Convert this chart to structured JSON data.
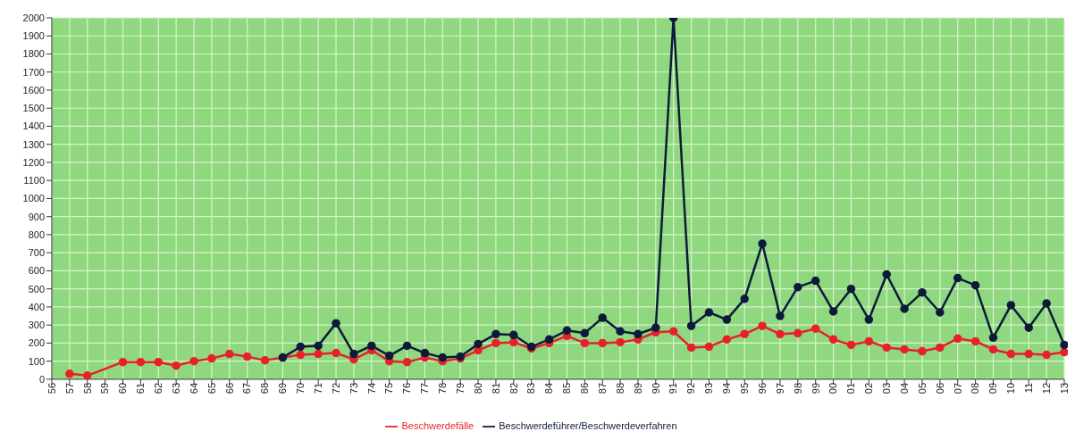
{
  "chart_data": {
    "type": "line",
    "categories": [
      "56",
      "57",
      "58",
      "59",
      "60",
      "61",
      "62",
      "63",
      "64",
      "65",
      "66",
      "67",
      "68",
      "69",
      "70",
      "71",
      "72",
      "73",
      "74",
      "75",
      "76",
      "77",
      "78",
      "79",
      "80",
      "81",
      "82",
      "83",
      "84",
      "85",
      "86",
      "87",
      "88",
      "89",
      "90",
      "91",
      "92",
      "93",
      "94",
      "95",
      "96",
      "97",
      "98",
      "99",
      "00",
      "01",
      "02",
      "03",
      "04",
      "05",
      "06",
      "07",
      "08",
      "09",
      "10",
      "11",
      "12",
      "13"
    ],
    "series": [
      {
        "name": "Beschwerdefälle",
        "color": "#e8202a",
        "values": [
          null,
          30,
          20,
          null,
          95,
          95,
          95,
          75,
          100,
          115,
          140,
          125,
          105,
          120,
          135,
          140,
          145,
          110,
          160,
          100,
          95,
          120,
          100,
          115,
          160,
          200,
          205,
          170,
          200,
          240,
          200,
          200,
          205,
          220,
          260,
          265,
          175,
          180,
          220,
          250,
          295,
          250,
          255,
          280,
          220,
          190,
          210,
          175,
          165,
          155,
          175,
          225,
          210,
          165,
          140,
          140,
          135,
          150
        ]
      },
      {
        "name": "Beschwerdeführer/Beschwerdeverfahren",
        "color": "#0d1a3a",
        "values": [
          null,
          null,
          null,
          null,
          null,
          null,
          null,
          null,
          null,
          null,
          null,
          null,
          null,
          120,
          180,
          185,
          310,
          140,
          185,
          130,
          185,
          145,
          120,
          125,
          195,
          250,
          245,
          180,
          220,
          270,
          255,
          340,
          265,
          250,
          285,
          2000,
          295,
          370,
          330,
          445,
          750,
          350,
          510,
          545,
          375,
          500,
          330,
          580,
          390,
          480,
          370,
          560,
          520,
          230,
          410,
          285,
          420,
          190
        ]
      }
    ],
    "ylim": [
      0,
      2000
    ],
    "yticks": [
      0,
      100,
      200,
      300,
      400,
      500,
      600,
      700,
      800,
      900,
      1000,
      1100,
      1200,
      1300,
      1400,
      1500,
      1600,
      1700,
      1800,
      1900,
      2000
    ],
    "grid": true,
    "legend": "bottom",
    "marker": "circle",
    "line_style": "solid"
  }
}
